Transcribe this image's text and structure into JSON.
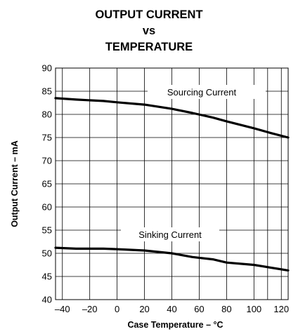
{
  "chart_data": {
    "type": "line",
    "title_lines": [
      "OUTPUT CURRENT",
      "vs",
      "TEMPERATURE"
    ],
    "xlabel": "Case Temperature – °C",
    "ylabel": "Output Current – mA",
    "xlim": [
      -45,
      125
    ],
    "ylim": [
      40,
      90
    ],
    "xticks": [
      -40,
      -20,
      0,
      20,
      40,
      60,
      80,
      100,
      120
    ],
    "yticks": [
      40,
      45,
      50,
      55,
      60,
      65,
      70,
      75,
      80,
      85,
      90
    ],
    "xtick_labels": [
      "–40",
      "–20",
      "0",
      "20",
      "40",
      "60",
      "80",
      "100",
      "120"
    ],
    "ytick_labels": [
      "40",
      "45",
      "50",
      "55",
      "60",
      "65",
      "70",
      "75",
      "80",
      "85",
      "90"
    ],
    "grid": true,
    "series": [
      {
        "name": "Sourcing Current",
        "x": [
          -45,
          -30,
          -10,
          0,
          20,
          40,
          55,
          70,
          80,
          100,
          112,
          125
        ],
        "y": [
          83.5,
          83.2,
          82.9,
          82.6,
          82.1,
          81.2,
          80.3,
          79.3,
          78.5,
          77.0,
          76.0,
          75.0
        ]
      },
      {
        "name": "Sinking Current",
        "x": [
          -45,
          -30,
          -10,
          0,
          20,
          40,
          55,
          70,
          80,
          100,
          125
        ],
        "y": [
          51.2,
          51.0,
          51.0,
          50.9,
          50.6,
          50.0,
          49.2,
          48.7,
          48.0,
          47.5,
          46.3
        ]
      }
    ]
  }
}
